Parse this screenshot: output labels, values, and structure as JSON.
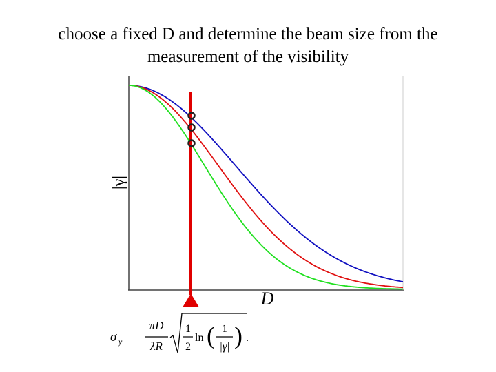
{
  "slide": {
    "title_lines": [
      "choose a fixed D and determine the beam size from the",
      "measurement of the visibility"
    ],
    "y_axis_label": "|γ|",
    "x_axis_label": "D",
    "formula": {
      "lhs": "σ",
      "lhs_sub": "y",
      "equals": "=",
      "num1": "πD",
      "den1": "λR",
      "num2": "1",
      "den2": "2",
      "ln": "ln",
      "num3": "1",
      "den3": "|γ|",
      "end": "."
    }
  }
}
